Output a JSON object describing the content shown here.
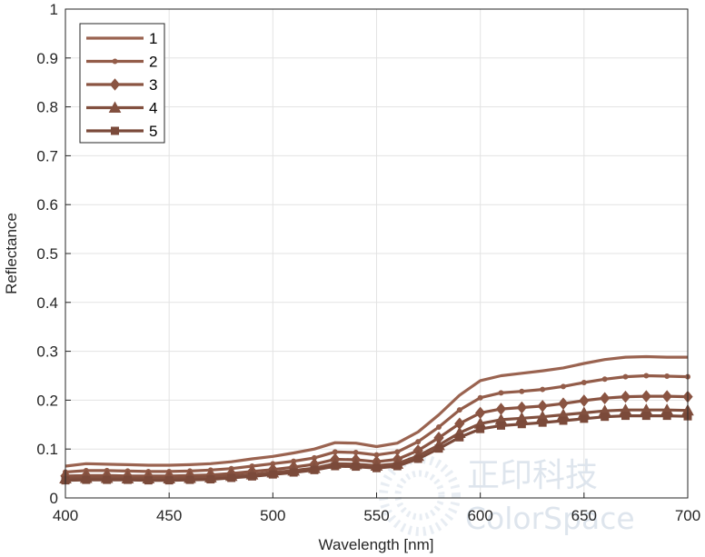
{
  "chart_data": {
    "type": "line",
    "title": "",
    "xlabel": "Wavelength [nm]",
    "ylabel": "Reflectance",
    "xlim": [
      400,
      700
    ],
    "ylim": [
      0,
      1
    ],
    "xticks": [
      400,
      450,
      500,
      550,
      600,
      650,
      700
    ],
    "yticks": [
      0,
      0.1,
      0.2,
      0.3,
      0.4,
      0.5,
      0.6,
      0.7,
      0.8,
      0.9,
      1
    ],
    "grid": true,
    "legend_position": "top-left",
    "x": [
      400,
      410,
      420,
      430,
      440,
      450,
      460,
      470,
      480,
      490,
      500,
      510,
      520,
      530,
      540,
      550,
      560,
      570,
      580,
      590,
      600,
      610,
      620,
      630,
      640,
      650,
      660,
      670,
      680,
      690,
      700
    ],
    "series": [
      {
        "name": "1",
        "color": "#9a6350",
        "marker": "none",
        "values": [
          0.065,
          0.07,
          0.069,
          0.068,
          0.067,
          0.067,
          0.068,
          0.07,
          0.074,
          0.08,
          0.085,
          0.092,
          0.1,
          0.113,
          0.112,
          0.105,
          0.112,
          0.135,
          0.17,
          0.21,
          0.24,
          0.25,
          0.255,
          0.26,
          0.266,
          0.275,
          0.283,
          0.288,
          0.289,
          0.288,
          0.288
        ]
      },
      {
        "name": "2",
        "color": "#935c49",
        "marker": "dot",
        "values": [
          0.053,
          0.056,
          0.056,
          0.055,
          0.054,
          0.054,
          0.055,
          0.057,
          0.06,
          0.065,
          0.07,
          0.075,
          0.082,
          0.094,
          0.093,
          0.088,
          0.094,
          0.115,
          0.145,
          0.18,
          0.205,
          0.215,
          0.218,
          0.222,
          0.228,
          0.236,
          0.243,
          0.248,
          0.25,
          0.249,
          0.248
        ]
      },
      {
        "name": "3",
        "color": "#8a5442",
        "marker": "diamond",
        "values": [
          0.045,
          0.046,
          0.046,
          0.045,
          0.045,
          0.045,
          0.046,
          0.047,
          0.05,
          0.054,
          0.058,
          0.063,
          0.069,
          0.079,
          0.078,
          0.074,
          0.079,
          0.097,
          0.123,
          0.152,
          0.174,
          0.182,
          0.185,
          0.188,
          0.193,
          0.199,
          0.204,
          0.207,
          0.208,
          0.208,
          0.207
        ]
      },
      {
        "name": "4",
        "color": "#82503f",
        "marker": "triangle",
        "values": [
          0.04,
          0.041,
          0.041,
          0.04,
          0.04,
          0.04,
          0.041,
          0.042,
          0.045,
          0.048,
          0.052,
          0.056,
          0.061,
          0.07,
          0.069,
          0.066,
          0.07,
          0.086,
          0.108,
          0.133,
          0.152,
          0.16,
          0.163,
          0.166,
          0.17,
          0.174,
          0.178,
          0.18,
          0.18,
          0.18,
          0.179
        ]
      },
      {
        "name": "5",
        "color": "#7b4a3a",
        "marker": "square",
        "values": [
          0.036,
          0.037,
          0.037,
          0.037,
          0.036,
          0.036,
          0.037,
          0.038,
          0.041,
          0.044,
          0.048,
          0.052,
          0.057,
          0.065,
          0.064,
          0.061,
          0.065,
          0.08,
          0.101,
          0.124,
          0.141,
          0.148,
          0.151,
          0.154,
          0.158,
          0.162,
          0.166,
          0.168,
          0.168,
          0.168,
          0.167
        ]
      }
    ]
  },
  "watermark": {
    "cn": "正印科技",
    "en": "ColorSpace"
  }
}
